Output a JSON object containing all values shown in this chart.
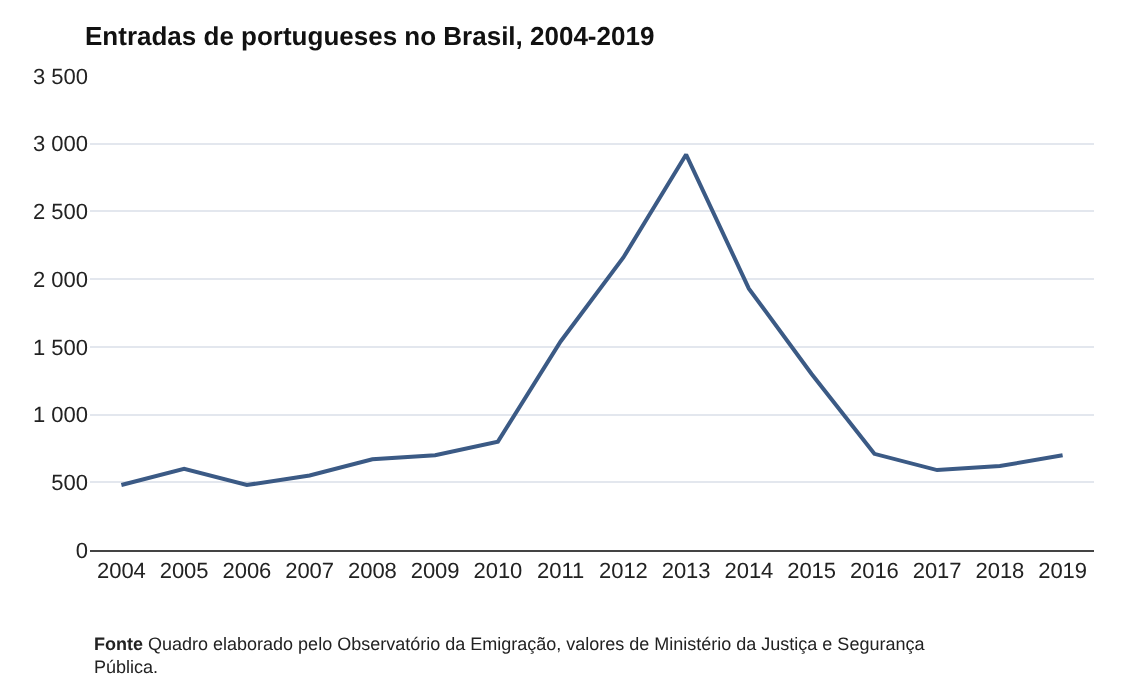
{
  "chart_data": {
    "type": "line",
    "title": "Entradas de portugueses no Brasil, 2004-2019",
    "categories": [
      "2004",
      "2005",
      "2006",
      "2007",
      "2008",
      "2009",
      "2010",
      "2011",
      "2012",
      "2013",
      "2014",
      "2015",
      "2016",
      "2017",
      "2018",
      "2019"
    ],
    "series": [
      {
        "color": "#3b5a85",
        "values": [
          480,
          600,
          480,
          550,
          670,
          700,
          800,
          1540,
          2160,
          2920,
          1930,
          1300,
          710,
          590,
          620,
          700
        ]
      }
    ],
    "ylim": [
      0,
      3500
    ],
    "yticks": [
      0,
      500,
      {
        "value": 1000,
        "label": "1 000"
      },
      {
        "value": 1500,
        "label": "1 500"
      },
      {
        "value": 2000,
        "label": "2 000"
      },
      {
        "value": 2500,
        "label": "2 500"
      },
      {
        "value": 3000,
        "label": "3 000"
      },
      {
        "value": 3500,
        "label": "3 500"
      }
    ],
    "grid": "y",
    "legend": false,
    "marker": "none",
    "line_style": "solid",
    "annotations": [
      "Fonte Quadro elaborado pelo Observatório da Emigração, valores de Ministério da Justiça e Segurança Pública."
    ]
  }
}
